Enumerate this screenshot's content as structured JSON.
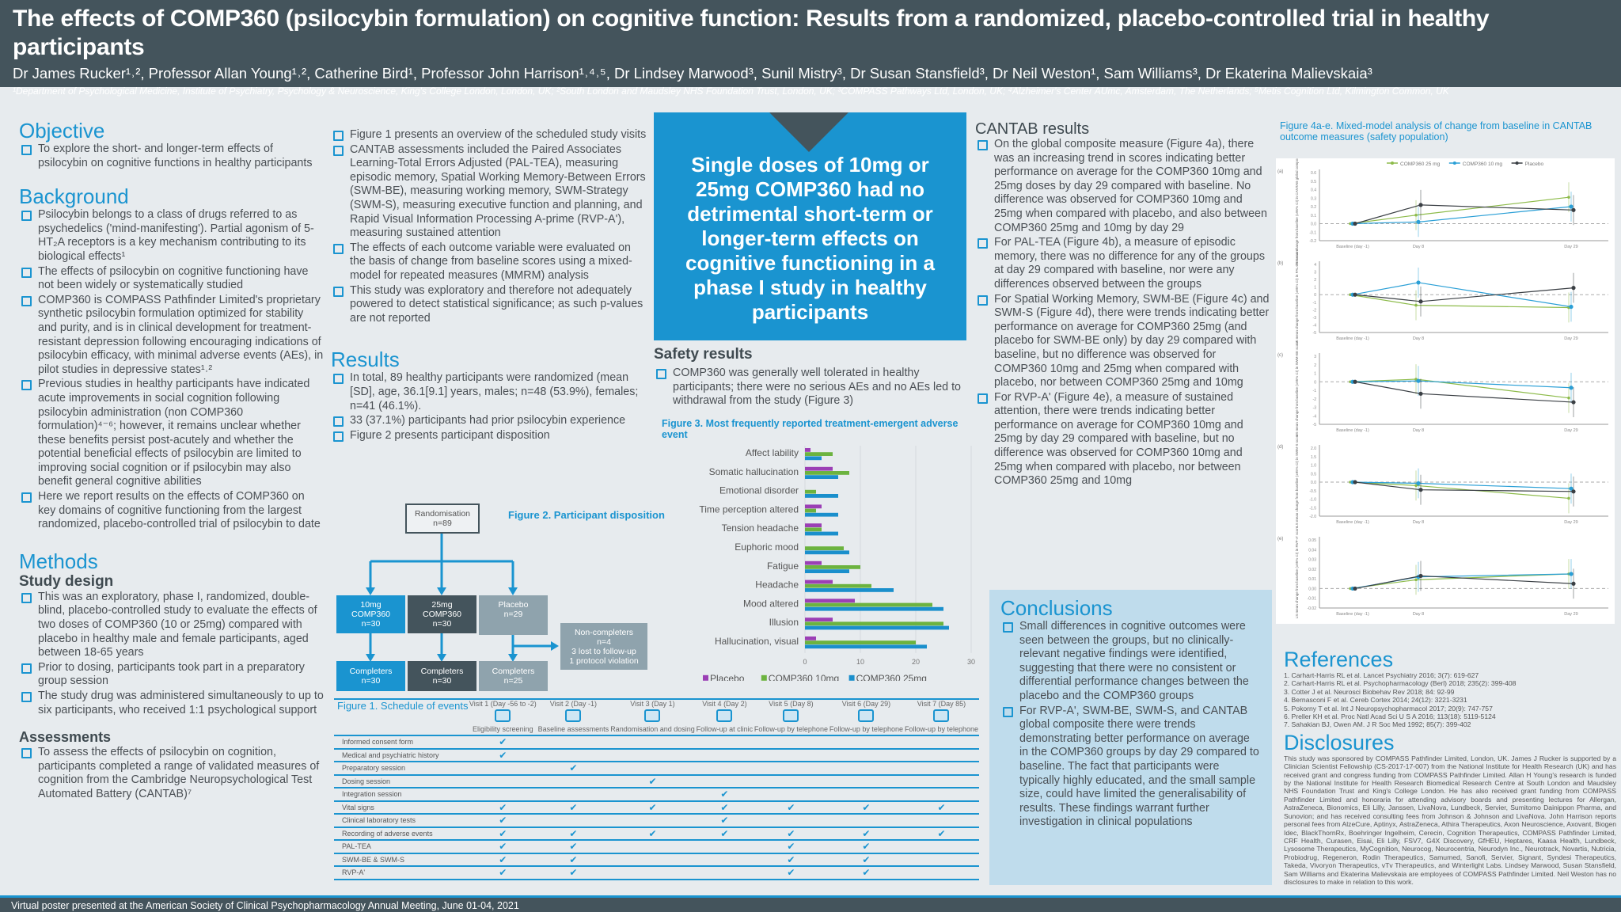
{
  "header": {
    "title": "The effects of COMP360 (psilocybin formulation) on cognitive function: Results from a randomized, placebo-controlled trial in healthy participants",
    "authors": "Dr James Rucker¹˒², Professor Allan Young¹˒², Catherine Bird¹, Professor John Harrison¹˒⁴˒⁵, Dr Lindsey Marwood³, Sunil Mistry³, Dr Susan Stansfield³, Dr Neil Weston¹, Sam Williams³, Dr Ekaterina Malievskaia³",
    "affiliations": "¹Department of Psychological Medicine, Institute of Psychiatry, Psychology & Neuroscience, King's College London, London, UK; ²South London and Maudsley NHS Foundation Trust, London, UK; ³COMPASS Pathways Ltd, London, UK; ⁴Alzheimer's Center AUmc, Amsterdam, The Netherlands; ⁵Metis Cognition Ltd, Kilmington Common, UK"
  },
  "objective": {
    "heading": "Objective",
    "items": [
      "To explore the short- and longer-term effects of psilocybin on cognitive functions in healthy participants"
    ]
  },
  "background": {
    "heading": "Background",
    "items": [
      "Psilocybin belongs to a class of drugs referred to as psychedelics ('mind-manifesting'). Partial agonism of 5-HT₂A receptors is a key mechanism contributing to its biological effects¹",
      "The effects of psilocybin on cognitive functioning have not been widely or systematically studied",
      "COMP360 is COMPASS Pathfinder Limited's proprietary synthetic psilocybin formulation optimized for stability and purity, and is in clinical development for treatment-resistant depression following encouraging indications of psilocybin efficacy, with minimal adverse events (AEs), in pilot studies in depressive states¹˒²",
      "Previous studies in healthy participants have indicated acute improvements in social cognition following psilocybin administration (non COMP360 formulation)⁴⁻⁶; however, it remains unclear whether these benefits persist post-acutely and whether the potential beneficial effects of psilocybin are limited to improving social cognition or if psilocybin may also benefit general cognitive abilities",
      "Here we report results on the effects of COMP360 on key domains of cognitive functioning from the largest randomized, placebo-controlled trial of psilocybin to date"
    ]
  },
  "methods": {
    "heading": "Methods",
    "subheading": "Study design",
    "items": [
      "This was an exploratory, phase I, randomized, double-blind, placebo-controlled study to evaluate the effects of two doses of COMP360 (10 or 25mg) compared with placebo in healthy male and female participants, aged between 18-65 years",
      "Prior to dosing, participants took part in a preparatory group session",
      "The study drug was administered simultaneously to up to six participants, who received 1:1 psychological support"
    ]
  },
  "assessments": {
    "heading": "Assessments",
    "items": [
      "To assess the effects of psilocybin on cognition, participants completed a range of validated measures of cognition from the Cambridge Neuropsychological Test Automated Battery (CANTAB)⁷"
    ]
  },
  "methods_cont": {
    "items": [
      "Figure 1 presents an overview of the scheduled study visits",
      "CANTAB assessments included the Paired Associates Learning-Total Errors Adjusted (PAL-TEA), measuring episodic memory, Spatial Working Memory-Between Errors (SWM-BE), measuring working memory, SWM-Strategy (SWM-S), measuring executive function and planning, and Rapid Visual Information Processing A-prime (RVP-A'), measuring sustained attention",
      "The effects of each outcome variable were evaluated on the basis of change from baseline scores using a mixed-model for repeated measures (MMRM) analysis",
      "This study was exploratory and therefore not adequately powered to detect statistical significance; as such p-values are not reported"
    ]
  },
  "results": {
    "heading": "Results",
    "items": [
      "In total, 89 healthy participants were randomized (mean [SD], age, 36.1[9.1] years, males; n=48 (53.9%), females; n=41 (46.1%).",
      "33 (37.1%) participants had prior psilocybin experience",
      "Figure 2 presents participant disposition"
    ]
  },
  "key_message": "Single doses of 10mg or 25mg COMP360 had no detrimental short-term or longer-term effects on cognitive functioning in a phase I study in healthy participants",
  "safety": {
    "heading": "Safety results",
    "items": [
      "COMP360 was generally well tolerated in healthy participants; there were no serious AEs and no AEs led to withdrawal from the study (Figure 3)"
    ]
  },
  "figure2": {
    "title": "Figure 2. Participant disposition",
    "rand": [
      "Randomisation",
      "n=89"
    ],
    "arms": [
      [
        "10mg",
        "COMP360",
        "n=30"
      ],
      [
        "25mg",
        "COMP360",
        "n=30"
      ],
      [
        "Placebo",
        "n=29"
      ]
    ],
    "completers": [
      [
        "Completers",
        "n=30"
      ],
      [
        "Completers",
        "n=30"
      ],
      [
        "Completers",
        "n=25"
      ]
    ],
    "noncompleters": [
      "Non-completers",
      "n=4",
      "3 lost to follow-up",
      "1 protocol violation"
    ],
    "colors": [
      "#1a94d0",
      "#44545c",
      "#8fa3ad"
    ]
  },
  "figure1": {
    "title": "Figure 1. Schedule of events",
    "visits": [
      {
        "name": "Visit 1 (Day -56 to -2)",
        "label": "Eligibility screening",
        "icon": "clipboard-icon"
      },
      {
        "name": "Visit 2 (Day -1)",
        "label": "Baseline assessments",
        "icon": "head-icon"
      },
      {
        "name": "Visit 3 (Day 1)",
        "label": "Randomisation and dosing",
        "icon": "capsule-icon"
      },
      {
        "name": "Visit 4 (Day 2)",
        "label": "Follow-up at clinic",
        "icon": "clinic-icon"
      },
      {
        "name": "Visit 5 (Day 8)",
        "label": "Follow-up by telephone",
        "icon": "phone-icon"
      },
      {
        "name": "Visit 6 (Day 29)",
        "label": "Follow-up by telephone",
        "icon": "phone-icon"
      },
      {
        "name": "Visit 7 (Day 85)",
        "label": "Follow-up by telephone",
        "icon": "phone-icon"
      }
    ],
    "check": "✔",
    "rows": [
      {
        "label": "Informed consent form",
        "checks": [
          1,
          0,
          0,
          0,
          0,
          0,
          0
        ]
      },
      {
        "label": "Medical and psychiatric history",
        "checks": [
          1,
          0,
          0,
          0,
          0,
          0,
          0
        ]
      },
      {
        "label": "Preparatory session",
        "checks": [
          0,
          1,
          0,
          0,
          0,
          0,
          0
        ]
      },
      {
        "label": "Dosing session",
        "checks": [
          0,
          0,
          1,
          0,
          0,
          0,
          0
        ]
      },
      {
        "label": "Integration session",
        "checks": [
          0,
          0,
          0,
          1,
          0,
          0,
          0
        ]
      },
      {
        "label": "Vital signs",
        "checks": [
          1,
          1,
          1,
          1,
          1,
          1,
          1
        ]
      },
      {
        "label": "Clinical laboratory tests",
        "checks": [
          1,
          0,
          0,
          1,
          0,
          0,
          0
        ]
      },
      {
        "label": "Recording of adverse events",
        "checks": [
          1,
          1,
          1,
          1,
          1,
          1,
          1
        ]
      },
      {
        "label": "PAL-TEA",
        "checks": [
          1,
          1,
          0,
          0,
          1,
          1,
          0
        ]
      },
      {
        "label": "SWM-BE & SWM-S",
        "checks": [
          1,
          1,
          0,
          0,
          1,
          1,
          0
        ]
      },
      {
        "label": "RVP-A'",
        "checks": [
          1,
          1,
          0,
          0,
          1,
          1,
          0
        ]
      }
    ]
  },
  "cantab": {
    "heading": "CANTAB results",
    "items": [
      "On the global composite measure (Figure 4a), there was an increasing trend in scores indicating better performance on average for the COMP360 10mg and 25mg doses by day 29 compared with baseline. No difference was observed for COMP360 10mg and 25mg when compared with placebo, and also between COMP360 25mg and 10mg by day 29",
      "For PAL-TEA (Figure 4b), a measure of episodic memory, there was no difference for any of the groups at day 29 compared with baseline, nor were any differences observed between the groups",
      "For Spatial Working Memory, SWM-BE (Figure 4c) and SWM-S (Figure 4d), there were trends indicating better performance on average for COMP360 25mg (and placebo for SWM-BE only) by day 29 compared with baseline, but no difference was observed for COMP360 10mg and 25mg when compared with placebo, nor between COMP360 25mg and 10mg",
      "For RVP-A' (Figure 4e), a measure of sustained attention, there were trends indicating better performance on average for COMP360 10mg and 25mg by day 29 compared with baseline, but no difference was observed for COMP360 10mg and 25mg when compared with placebo, nor between COMP360 25mg and 10mg"
    ]
  },
  "conclusions": {
    "heading": "Conclusions",
    "items": [
      "Small differences in cognitive outcomes were seen between the groups, but no clinically-relevant negative findings were identified, suggesting that there were no consistent or differential performance changes between the placebo and the COMP360 groups",
      "For RVP-A', SWM-BE, SWM-S, and CANTAB global composite there were trends demonstrating better performance on average in the COMP360 groups by day 29 compared to baseline. The fact that participants were typically highly educated, and the small sample size, could have limited the generalisability of results. These findings warrant further investigation in clinical populations"
    ]
  },
  "references": {
    "heading": "References",
    "items": [
      "1. Carhart-Harris RL et al. Lancet Psychiatry 2016; 3(7): 619-627",
      "2. Carhart-Harris RL et al. Psychopharmacology (Berl) 2018; 235(2): 399-408",
      "3. Cotter J et al. Neurosci Biobehav Rev 2018; 84: 92-99",
      "4. Bernasconi F et al. Cereb Cortex 2014; 24(12): 3221-3231",
      "5. Pokorny T et al. Int J Neuropsychopharmacol 2017; 20(9): 747-757",
      "6. Preller KH et al. Proc Natl Acad Sci U S A 2016; 113(18): 5119-5124",
      "7. Sahakian BJ, Owen AM. J R Soc Med 1992; 85(7): 399-402"
    ]
  },
  "disclosures": {
    "heading": "Disclosures",
    "text": "This study was sponsored by COMPASS Pathfinder Limited, London, UK. James J Rucker is supported by a Clinician Scientist Fellowship (CS-2017-17-007) from the National Institute for Health Research (UK) and has received grant and congress funding from COMPASS Pathfinder Limited. Allan H Young's research is funded by the National Institute for Health Research Biomedical Research Centre at South London and Maudsley NHS Foundation Trust and King's College London. He has also received grant funding from COMPASS Pathfinder Limited and honoraria for attending advisory boards and presenting lectures for Allergan, AstraZeneca, Bionomics, Eli Lilly, Janssen, LivaNova, Lundbeck, Servier, Sumitomo Dainippon Pharma, and Sunovion; and has received consulting fees from Johnson & Johnson and LivaNova. John Harrison reports personal fees from AlzeCure, Aptinyx, AstraZeneca, Athira Therapeutics, Axon Neuroscience, Axovant, Biogen Idec, BlackThornRx, Boehringer Ingelheim, Cerecin, Cognition Therapeutics, COMPASS Pathfinder Limited, CRF Health, Curasen, Eisai, Eli Lilly, FSV7, G4X Discovery, GfHEU, Heptares, Kaasa Health, Lundbeck, Lysosome Therapeutics, MyCognition, Neurocog, Neurocentria, Neurodyn Inc., Neurotrack, Novartis, Nutricia, Probiodrug, Regeneron, Rodin Therapeutics, Samumed, Sanofi, Servier, Signant, Syndesi Therapeutics, Takeda, Vivoryon Therapeutics, vTv Therapeutics, and Winterlight Labs. Lindsey Marwood, Susan Stansfield, Sam Williams and Ekaterina Malievskaia are employees of COMPASS Pathfinder Limited. Neil Weston has no disclosures to make in relation to this work."
  },
  "footer": "Virtual poster presented at the American Society of Clinical Psychopharmacology Annual Meeting, June 01-04, 2021",
  "chart_data": [
    {
      "type": "bar",
      "orientation": "horizontal",
      "title": "Figure 3. Most frequently reported treatment-emergent adverse event",
      "categories": [
        "Affect lability",
        "Somatic hallucination",
        "Emotional disorder",
        "Time perception altered",
        "Tension headache",
        "Euphoric mood",
        "Fatigue",
        "Headache",
        "Mood altered",
        "Illusion",
        "Hallucination, visual"
      ],
      "series": [
        {
          "name": "Placebo",
          "color": "#9b3fb5",
          "values": [
            1,
            5,
            0,
            3,
            3,
            0,
            3,
            5,
            9,
            5,
            2
          ]
        },
        {
          "name": "COMP360 10mg",
          "color": "#6cb33f",
          "values": [
            5,
            8,
            2,
            2,
            3,
            7,
            10,
            12,
            23,
            25,
            20
          ]
        },
        {
          "name": "COMP360 25mg",
          "color": "#1a8fcc",
          "values": [
            3,
            6,
            6,
            6,
            6,
            8,
            8,
            16,
            25,
            26,
            22
          ]
        }
      ],
      "xlim": [
        0,
        30
      ],
      "xticks": [
        "0",
        "10",
        "20",
        "30"
      ],
      "legend": "bottom",
      "grid": true
    },
    {
      "type": "line",
      "title": "Figure 4a-e. Mixed-model analysis of change from baseline in CANTAB outcome measures (safety population)",
      "x": [
        "Baseline (day -1)",
        "Day 8",
        "Day 29"
      ],
      "legend": [
        "COMP360 25 mg",
        "COMP360 10 mg",
        "Placebo"
      ],
      "colors": [
        "#8dbb4a",
        "#2a9fd6",
        "#3a3f44"
      ],
      "panels": [
        {
          "label": "(a)",
          "ylabel": "LS mean change from baseline (±95% CI) in CANTAB global composite score",
          "ylim": [
            -0.2,
            0.6
          ],
          "yticks": [
            "-0.2",
            "-0.1",
            "0.0",
            "0.1",
            "0.2",
            "0.3",
            "0.4",
            "0.5",
            "0.6"
          ],
          "series": [
            [
              0,
              0.1,
              0.31
            ],
            [
              0,
              0.02,
              0.2
            ],
            [
              0,
              0.22,
              0.16
            ]
          ]
        },
        {
          "label": "(b)",
          "ylabel": "LS mean change from baseline (±95% CI) in PAL-TEA score",
          "ylim": [
            -5,
            4
          ],
          "yticks": [
            "-5",
            "-4",
            "-3",
            "-2",
            "-1",
            "0",
            "1",
            "2",
            "3",
            "4"
          ],
          "series": [
            [
              0,
              -1.4,
              -1.7
            ],
            [
              0,
              1.6,
              -1.6
            ],
            [
              0,
              -0.9,
              0.9
            ]
          ]
        },
        {
          "label": "(c)",
          "ylabel": "LS mean change from baseline (±95% CI) in SWM-BE score",
          "ylim": [
            -5,
            3
          ],
          "yticks": [
            "-5",
            "-4",
            "-3",
            "-2",
            "-1",
            "0",
            "1",
            "2",
            "3"
          ],
          "series": [
            [
              0,
              0.3,
              -1.9
            ],
            [
              0,
              0.1,
              -0.7
            ],
            [
              0,
              -1.4,
              -2.4
            ]
          ]
        },
        {
          "label": "(d)",
          "ylabel": "LS mean change from baseline (±95% CI) in SWM-S score",
          "ylim": [
            -2,
            2
          ],
          "yticks": [
            "-2.0",
            "-1.5",
            "-1.0",
            "-0.5",
            "0.0",
            "0.5",
            "1.0",
            "1.5",
            "2.0"
          ],
          "series": [
            [
              0,
              -0.2,
              -0.95
            ],
            [
              0,
              -0.07,
              -0.38
            ],
            [
              0,
              -0.45,
              -0.55
            ]
          ]
        },
        {
          "label": "(e)",
          "ylabel": "LS mean change from baseline (±95% CI) in RVP-A' score",
          "ylim": [
            -0.02,
            0.05
          ],
          "yticks": [
            "-0.02",
            "-0.01",
            "0.00",
            "0.01",
            "0.02",
            "0.03",
            "0.04",
            "0.05"
          ],
          "series": [
            [
              0,
              0.009,
              0.015
            ],
            [
              0,
              0.012,
              0.015
            ],
            [
              0,
              0.013,
              0.005
            ]
          ]
        }
      ]
    }
  ]
}
